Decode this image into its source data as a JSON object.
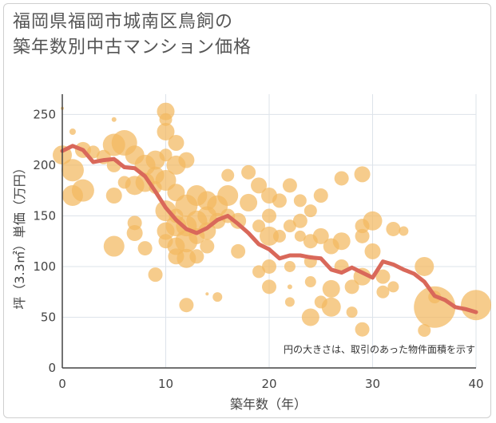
{
  "chart_data": {
    "type": "scatter",
    "title": "福岡県福岡市城南区鳥飼の\n築年数別中古マンション価格",
    "xlabel": "築年数（年）",
    "ylabel": "坪（3.3㎡）単価（万円）",
    "xlim": [
      0,
      40
    ],
    "ylim": [
      0,
      270
    ],
    "x_ticks": [
      0,
      10,
      20,
      30,
      40
    ],
    "y_ticks": [
      0,
      50,
      100,
      150,
      200,
      250
    ],
    "annotation": "円の大きさは、取引のあった物件面積を示す",
    "colors": {
      "bubble": "#f3b95f",
      "line": "#d9685a",
      "grid": "#dde3ea",
      "axis": "#444444"
    },
    "grid": true,
    "series": [
      {
        "type": "scatter",
        "points": [
          [
            0,
            256,
            2
          ],
          [
            0,
            210,
            12
          ],
          [
            1,
            195,
            14
          ],
          [
            1,
            170,
            13
          ],
          [
            1,
            233,
            4
          ],
          [
            2,
            175,
            14
          ],
          [
            2,
            215,
            10
          ],
          [
            3,
            213,
            8
          ],
          [
            4,
            208,
            9
          ],
          [
            5,
            245,
            3
          ],
          [
            5,
            220,
            14
          ],
          [
            5,
            200,
            9
          ],
          [
            5,
            170,
            10
          ],
          [
            5,
            120,
            13
          ],
          [
            6,
            222,
            16
          ],
          [
            6,
            183,
            8
          ],
          [
            7,
            210,
            12
          ],
          [
            7,
            180,
            12
          ],
          [
            7,
            143,
            9
          ],
          [
            7,
            133,
            10
          ],
          [
            8,
            200,
            13
          ],
          [
            8,
            183,
            12
          ],
          [
            8,
            118,
            9
          ],
          [
            9,
            205,
            12
          ],
          [
            9,
            190,
            11
          ],
          [
            9,
            178,
            8
          ],
          [
            9,
            92,
            9
          ],
          [
            10,
            253,
            11
          ],
          [
            10,
            245,
            8
          ],
          [
            10,
            233,
            11
          ],
          [
            10,
            210,
            8
          ],
          [
            10,
            185,
            13
          ],
          [
            10,
            155,
            13
          ],
          [
            10,
            135,
            11
          ],
          [
            10,
            125,
            9
          ],
          [
            11,
            222,
            10
          ],
          [
            11,
            200,
            12
          ],
          [
            11,
            173,
            11
          ],
          [
            11,
            150,
            9
          ],
          [
            11,
            140,
            13
          ],
          [
            11,
            120,
            11
          ],
          [
            11,
            110,
            10
          ],
          [
            12,
            205,
            10
          ],
          [
            12,
            160,
            14
          ],
          [
            12,
            140,
            13
          ],
          [
            12,
            125,
            14
          ],
          [
            12,
            108,
            12
          ],
          [
            12,
            62,
            9
          ],
          [
            13,
            170,
            13
          ],
          [
            13,
            145,
            13
          ],
          [
            13,
            130,
            10
          ],
          [
            13,
            110,
            9
          ],
          [
            14,
            165,
            12
          ],
          [
            14,
            150,
            12
          ],
          [
            14,
            135,
            11
          ],
          [
            14,
            120,
            9
          ],
          [
            14,
            73,
            2
          ],
          [
            15,
            160,
            13
          ],
          [
            15,
            145,
            10
          ],
          [
            15,
            70,
            6
          ],
          [
            16,
            190,
            8
          ],
          [
            16,
            170,
            13
          ],
          [
            16,
            150,
            9
          ],
          [
            17,
            145,
            10
          ],
          [
            17,
            115,
            9
          ],
          [
            18,
            193,
            9
          ],
          [
            18,
            163,
            11
          ],
          [
            19,
            180,
            10
          ],
          [
            19,
            140,
            8
          ],
          [
            19,
            95,
            8
          ],
          [
            20,
            170,
            10
          ],
          [
            20,
            150,
            9
          ],
          [
            20,
            130,
            12
          ],
          [
            20,
            100,
            9
          ],
          [
            20,
            80,
            9
          ],
          [
            21,
            165,
            9
          ],
          [
            21,
            130,
            8
          ],
          [
            22,
            180,
            9
          ],
          [
            22,
            140,
            8
          ],
          [
            22,
            100,
            7
          ],
          [
            22,
            80,
            3
          ],
          [
            22,
            65,
            6
          ],
          [
            23,
            165,
            8
          ],
          [
            23,
            145,
            9
          ],
          [
            23,
            130,
            7
          ],
          [
            24,
            155,
            8
          ],
          [
            24,
            125,
            9
          ],
          [
            24,
            105,
            8
          ],
          [
            24,
            85,
            7
          ],
          [
            24,
            50,
            11
          ],
          [
            25,
            170,
            9
          ],
          [
            25,
            130,
            10
          ],
          [
            25,
            65,
            8
          ],
          [
            26,
            120,
            10
          ],
          [
            26,
            78,
            11
          ],
          [
            26,
            60,
            12
          ],
          [
            27,
            187,
            9
          ],
          [
            27,
            125,
            11
          ],
          [
            27,
            100,
            9
          ],
          [
            28,
            80,
            9
          ],
          [
            28,
            55,
            7
          ],
          [
            29,
            191,
            10
          ],
          [
            29,
            140,
            9
          ],
          [
            29,
            130,
            9
          ],
          [
            29,
            90,
            11
          ],
          [
            29,
            38,
            9
          ],
          [
            30,
            145,
            12
          ],
          [
            30,
            115,
            10
          ],
          [
            31,
            90,
            9
          ],
          [
            31,
            75,
            8
          ],
          [
            32,
            137,
            9
          ],
          [
            32,
            80,
            7
          ],
          [
            33,
            135,
            6
          ],
          [
            35,
            100,
            12
          ],
          [
            35,
            37,
            8
          ],
          [
            36,
            70,
            8
          ],
          [
            36,
            60,
            26
          ],
          [
            40,
            62,
            19
          ]
        ]
      },
      {
        "type": "line",
        "points": [
          [
            0,
            214
          ],
          [
            1,
            219
          ],
          [
            2,
            215
          ],
          [
            3,
            203
          ],
          [
            4,
            205
          ],
          [
            5,
            206
          ],
          [
            6,
            198
          ],
          [
            7,
            197
          ],
          [
            8,
            189
          ],
          [
            9,
            174
          ],
          [
            10,
            158
          ],
          [
            11,
            146
          ],
          [
            12,
            137
          ],
          [
            13,
            133
          ],
          [
            14,
            138
          ],
          [
            15,
            146
          ],
          [
            16,
            150
          ],
          [
            17,
            142
          ],
          [
            18,
            133
          ],
          [
            19,
            122
          ],
          [
            20,
            117
          ],
          [
            21,
            108
          ],
          [
            22,
            111
          ],
          [
            23,
            111
          ],
          [
            24,
            109
          ],
          [
            25,
            108
          ],
          [
            26,
            97
          ],
          [
            27,
            94
          ],
          [
            28,
            99
          ],
          [
            29,
            94
          ],
          [
            30,
            89
          ],
          [
            31,
            105
          ],
          [
            32,
            102
          ],
          [
            33,
            97
          ],
          [
            34,
            93
          ],
          [
            35,
            85
          ],
          [
            36,
            71
          ],
          [
            37,
            67
          ],
          [
            38,
            60
          ],
          [
            39,
            58
          ],
          [
            40,
            55
          ]
        ]
      }
    ]
  }
}
